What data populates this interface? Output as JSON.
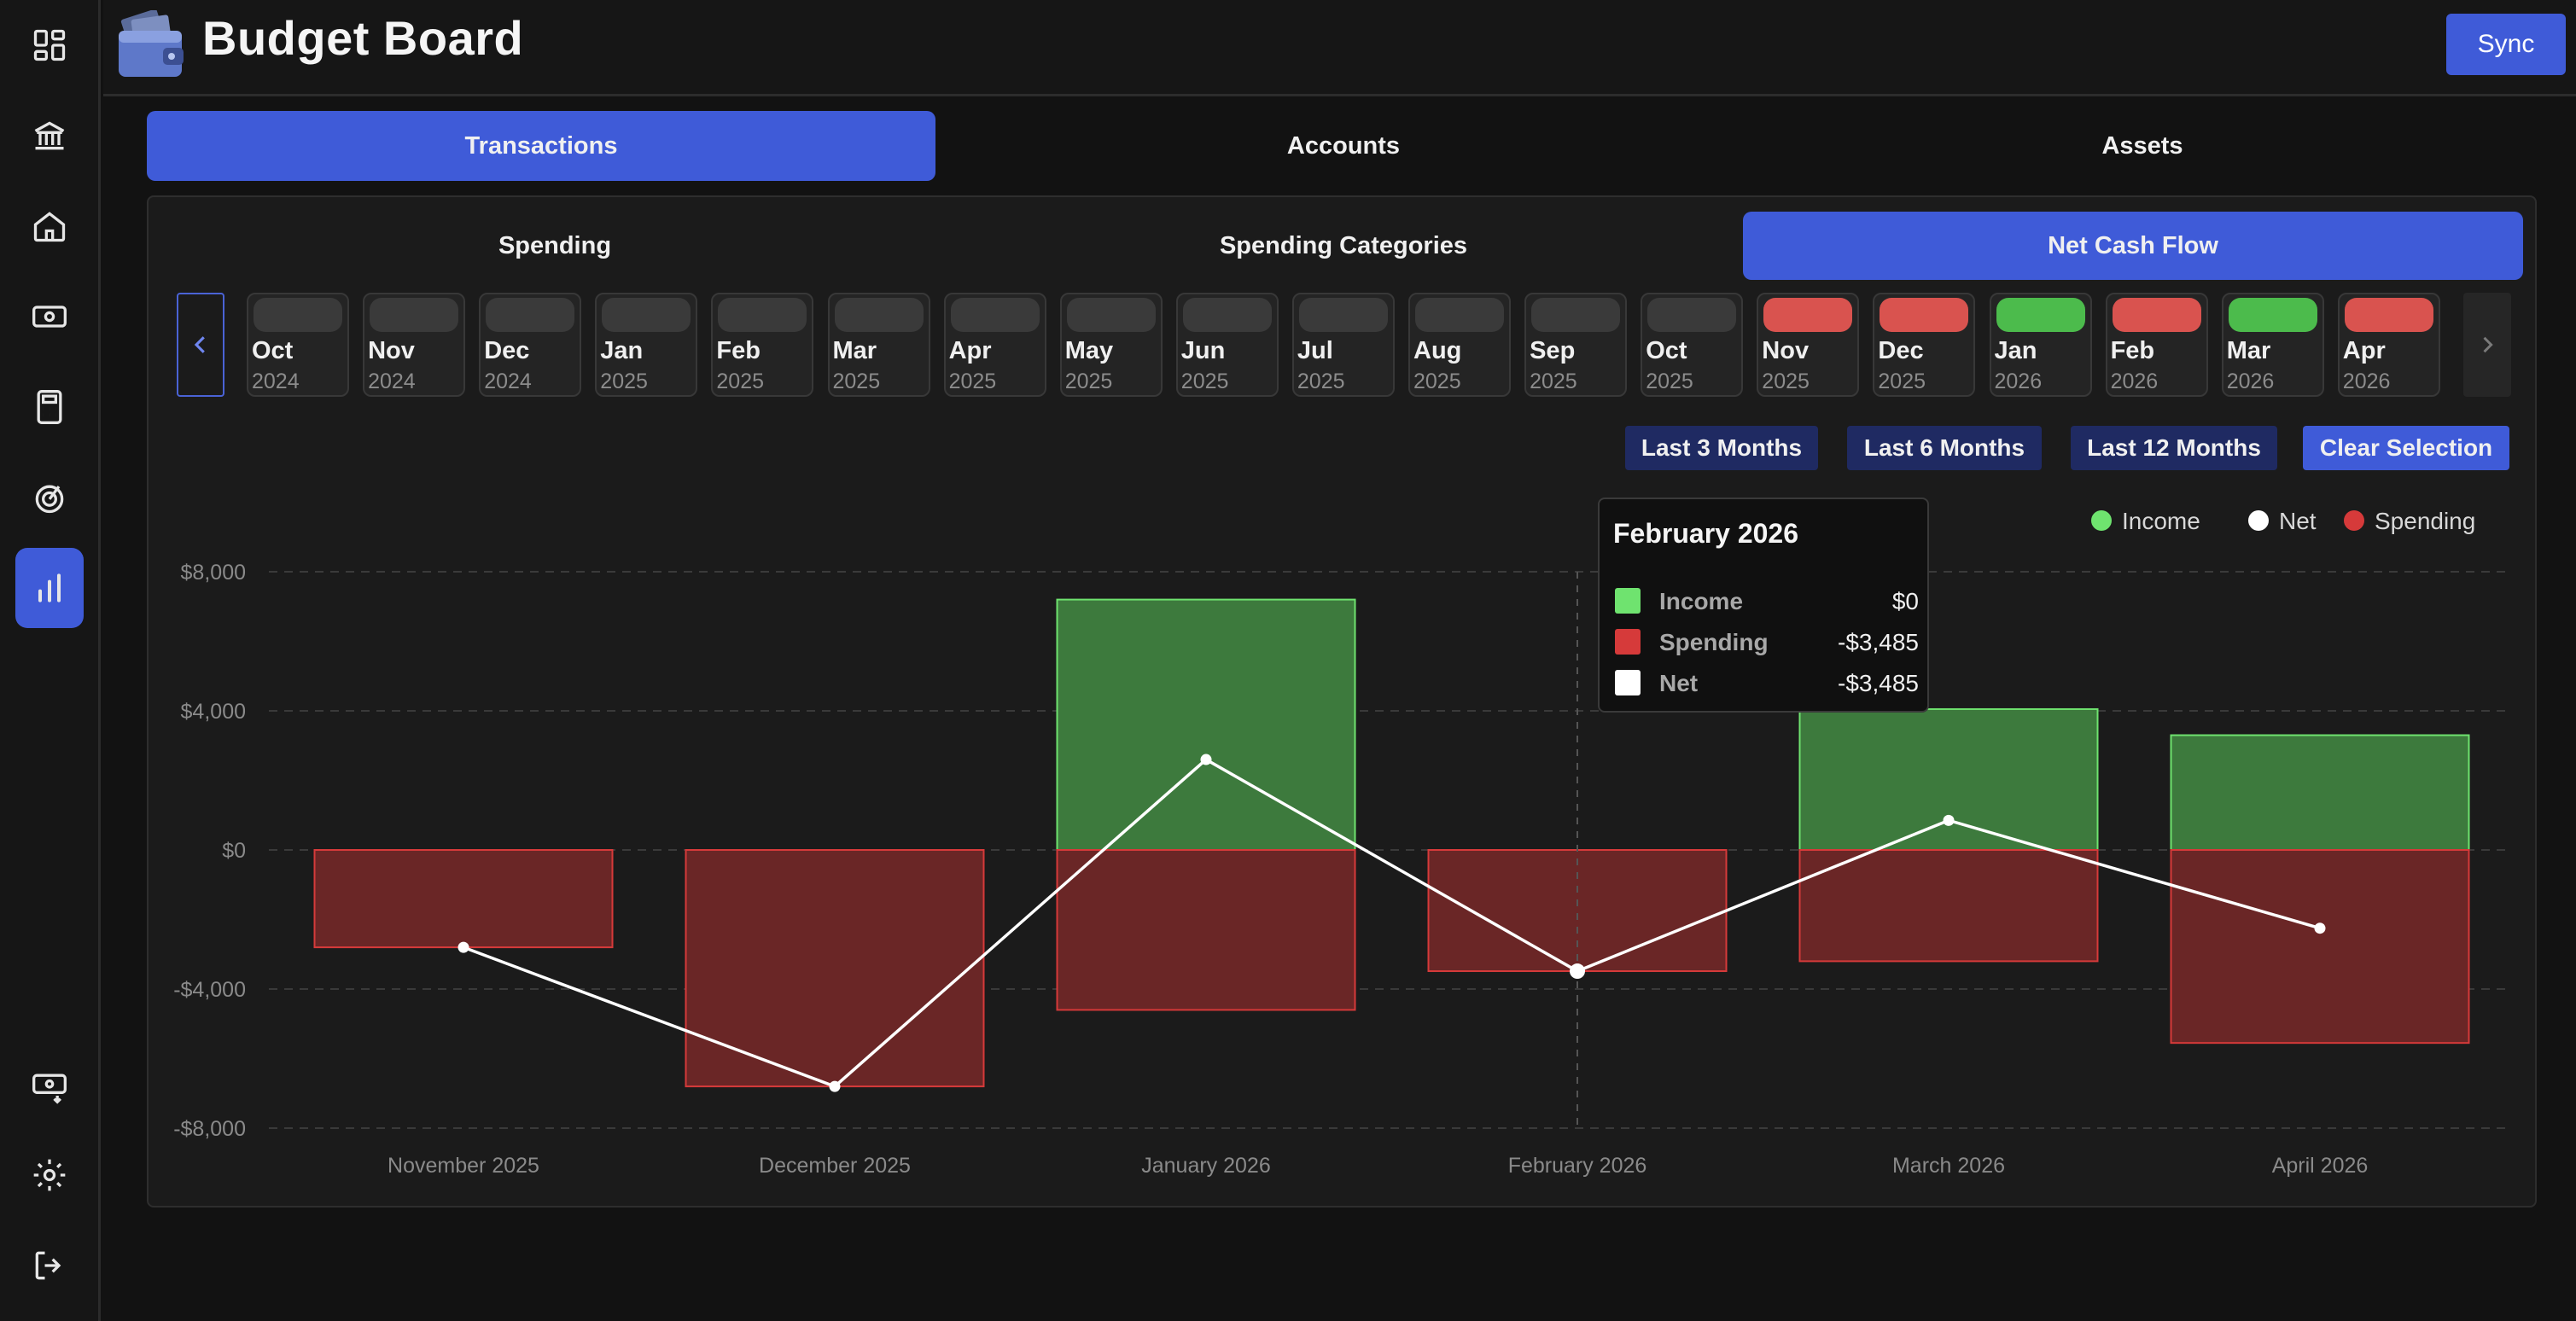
{
  "app": {
    "title": "Budget Board",
    "sync_label": "Sync"
  },
  "sidebar": {
    "top_icons": [
      "dashboard-icon",
      "bank-icon",
      "home-icon",
      "cash-icon",
      "calculator-icon",
      "goals-icon",
      "chart-icon"
    ],
    "bottom_icons": [
      "cash-import-icon",
      "settings-icon",
      "logout-icon"
    ],
    "active": "chart-icon"
  },
  "tabs": [
    {
      "label": "Transactions",
      "active": true
    },
    {
      "label": "Accounts",
      "active": false
    },
    {
      "label": "Assets",
      "active": false
    }
  ],
  "sub_tabs": [
    {
      "label": "Spending",
      "active": false
    },
    {
      "label": "Spending Categories",
      "active": false
    },
    {
      "label": "Net Cash Flow",
      "active": true
    }
  ],
  "months": [
    {
      "month": "Oct",
      "year": "2024",
      "status": "none"
    },
    {
      "month": "Nov",
      "year": "2024",
      "status": "none"
    },
    {
      "month": "Dec",
      "year": "2024",
      "status": "none"
    },
    {
      "month": "Jan",
      "year": "2025",
      "status": "none"
    },
    {
      "month": "Feb",
      "year": "2025",
      "status": "none"
    },
    {
      "month": "Mar",
      "year": "2025",
      "status": "none"
    },
    {
      "month": "Apr",
      "year": "2025",
      "status": "none"
    },
    {
      "month": "May",
      "year": "2025",
      "status": "none"
    },
    {
      "month": "Jun",
      "year": "2025",
      "status": "none"
    },
    {
      "month": "Jul",
      "year": "2025",
      "status": "none"
    },
    {
      "month": "Aug",
      "year": "2025",
      "status": "none"
    },
    {
      "month": "Sep",
      "year": "2025",
      "status": "none"
    },
    {
      "month": "Oct",
      "year": "2025",
      "status": "none"
    },
    {
      "month": "Nov",
      "year": "2025",
      "status": "red"
    },
    {
      "month": "Dec",
      "year": "2025",
      "status": "red"
    },
    {
      "month": "Jan",
      "year": "2026",
      "status": "green"
    },
    {
      "month": "Feb",
      "year": "2026",
      "status": "red"
    },
    {
      "month": "Mar",
      "year": "2026",
      "status": "green"
    },
    {
      "month": "Apr",
      "year": "2026",
      "status": "red"
    }
  ],
  "range_buttons": {
    "last3": "Last 3 Months",
    "last6": "Last 6 Months",
    "last12": "Last 12 Months",
    "clear": "Clear Selection"
  },
  "colors": {
    "income": "#6fe36f",
    "income_fill": "#3d7a3d",
    "spending": "#d63a3a",
    "spending_fill": "#6a2626",
    "net": "#ffffff",
    "accent": "#3f5bd8"
  },
  "chart_data": {
    "type": "bar",
    "categories": [
      "November 2025",
      "December 2025",
      "January 2026",
      "February 2026",
      "March 2026",
      "April 2026"
    ],
    "series": [
      {
        "name": "Income",
        "values": [
          0,
          0,
          7200,
          0,
          4050,
          3300
        ]
      },
      {
        "name": "Spending",
        "values": [
          -2800,
          -6800,
          -4600,
          -3485,
          -3200,
          -5550
        ]
      },
      {
        "name": "Net",
        "values": [
          -2800,
          -6800,
          2600,
          -3485,
          850,
          -2250
        ]
      }
    ],
    "y_ticks": [
      "$8,000",
      "$4,000",
      "$0",
      "-$4,000",
      "-$8,000"
    ],
    "ylim": [
      -8000,
      8000
    ],
    "legend": [
      "Income",
      "Net",
      "Spending"
    ],
    "legend_position": "top-right",
    "grid": true
  },
  "tooltip": {
    "title": "February 2026",
    "rows": [
      {
        "label": "Income",
        "value": "$0"
      },
      {
        "label": "Spending",
        "value": "-$3,485"
      },
      {
        "label": "Net",
        "value": "-$3,485"
      }
    ]
  }
}
